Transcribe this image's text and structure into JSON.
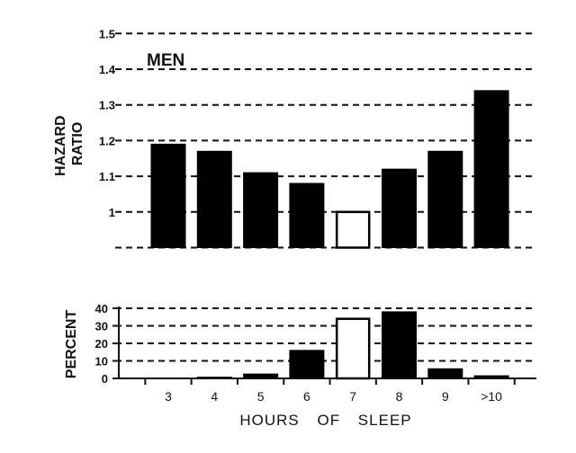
{
  "chart_data": [
    {
      "type": "bar",
      "title": "MEN",
      "ylabel": [
        "HAZARD",
        "RATIO"
      ],
      "xlabel": "",
      "ylim": [
        0.9,
        1.5
      ],
      "yticks": [
        "1",
        "1.1",
        "1.2",
        "1.3",
        "1.4",
        "1.5"
      ],
      "ytick_values": [
        1.0,
        1.1,
        1.2,
        1.3,
        1.4,
        1.5
      ],
      "gridlines": "dashed",
      "categories": [
        "3",
        "4",
        "5",
        "6",
        "7",
        "8",
        "9",
        ">10"
      ],
      "values": [
        1.19,
        1.17,
        1.11,
        1.08,
        1.0,
        1.12,
        1.17,
        1.34
      ],
      "reference_category": "7",
      "colors": {
        "bar": "#000000",
        "reference": "#ffffff"
      }
    },
    {
      "type": "bar",
      "title": "",
      "ylabel": "PERCENT",
      "xlabel": "HOURS OF SLEEP",
      "ylim": [
        0,
        40
      ],
      "yticks": [
        "0",
        "10",
        "20",
        "30",
        "40"
      ],
      "ytick_values": [
        0,
        10,
        20,
        30,
        40
      ],
      "gridlines": "dashed",
      "categories": [
        "3",
        "4",
        "5",
        "6",
        "7",
        "8",
        "9",
        ">10"
      ],
      "values": [
        0.3,
        0.7,
        2.5,
        16,
        34,
        38,
        5.5,
        1.5
      ],
      "reference_category": "7",
      "colors": {
        "bar": "#000000",
        "reference": "#ffffff"
      }
    }
  ]
}
